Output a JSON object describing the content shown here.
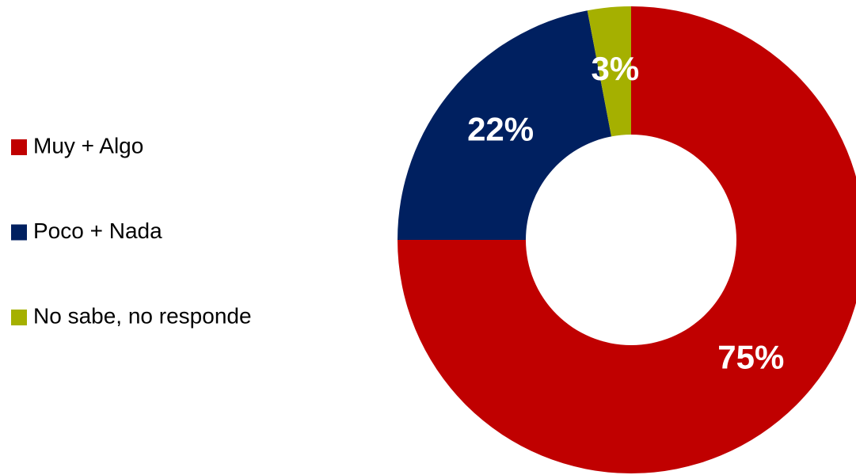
{
  "chart_data": {
    "type": "donut",
    "categories": [
      "Muy + Algo",
      "Poco + Nada",
      "No sabe, no responde"
    ],
    "values": [
      75,
      22,
      3
    ],
    "value_labels": [
      "75%",
      "22%",
      "3%"
    ],
    "colors": [
      "#c00000",
      "#002060",
      "#a5b000"
    ],
    "legend": "left"
  }
}
